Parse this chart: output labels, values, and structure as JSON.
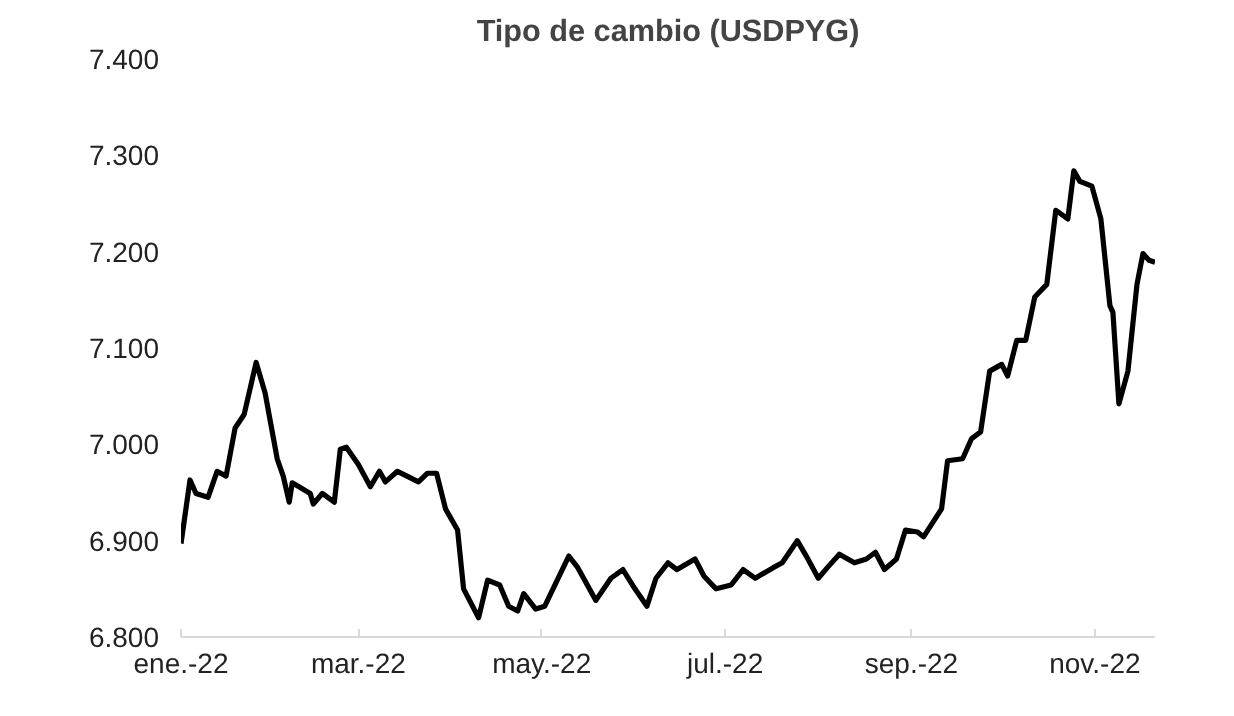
{
  "chart_data": {
    "type": "line",
    "title": "Tipo de cambio (USDPYG)",
    "x": [
      "2022-01-01",
      "2022-01-04",
      "2022-01-06",
      "2022-01-10",
      "2022-01-13",
      "2022-01-16",
      "2022-01-19",
      "2022-01-22",
      "2022-01-26",
      "2022-01-29",
      "2022-02-02",
      "2022-02-04",
      "2022-02-06",
      "2022-02-07",
      "2022-02-13",
      "2022-02-14",
      "2022-02-17",
      "2022-02-21",
      "2022-02-23",
      "2022-02-25",
      "2022-03-01",
      "2022-03-05",
      "2022-03-08",
      "2022-03-10",
      "2022-03-14",
      "2022-03-21",
      "2022-03-24",
      "2022-03-27",
      "2022-03-30",
      "2022-04-03",
      "2022-04-05",
      "2022-04-10",
      "2022-04-13",
      "2022-04-17",
      "2022-04-20",
      "2022-04-23",
      "2022-04-25",
      "2022-04-29",
      "2022-05-02",
      "2022-05-10",
      "2022-05-13",
      "2022-05-19",
      "2022-05-24",
      "2022-05-28",
      "2022-06-01",
      "2022-06-05",
      "2022-06-08",
      "2022-06-12",
      "2022-06-15",
      "2022-06-21",
      "2022-06-24",
      "2022-06-28",
      "2022-07-03",
      "2022-07-07",
      "2022-07-11",
      "2022-07-17",
      "2022-07-20",
      "2022-07-25",
      "2022-07-28",
      "2022-08-01",
      "2022-08-04",
      "2022-08-08",
      "2022-08-13",
      "2022-08-17",
      "2022-08-20",
      "2022-08-23",
      "2022-08-27",
      "2022-08-30",
      "2022-09-03",
      "2022-09-05",
      "2022-09-11",
      "2022-09-13",
      "2022-09-18",
      "2022-09-21",
      "2022-09-24",
      "2022-09-27",
      "2022-10-01",
      "2022-10-03",
      "2022-10-06",
      "2022-10-09",
      "2022-10-12",
      "2022-10-16",
      "2022-10-19",
      "2022-10-23",
      "2022-10-25",
      "2022-10-27",
      "2022-10-31",
      "2022-11-03",
      "2022-11-06",
      "2022-11-07",
      "2022-11-09",
      "2022-11-12",
      "2022-11-15",
      "2022-11-17",
      "2022-11-19",
      "2022-11-21"
    ],
    "series": [
      {
        "color": "#000000",
        "values": [
          6897,
          6963,
          6949,
          6945,
          6972,
          6967,
          7017,
          7031,
          7085,
          7053,
          6985,
          6967,
          6940,
          6960,
          6949,
          6938,
          6949,
          6940,
          6995,
          6997,
          6979,
          6956,
          6972,
          6961,
          6972,
          6961,
          6970,
          6970,
          6933,
          6911,
          6850,
          6820,
          6859,
          6854,
          6832,
          6827,
          6845,
          6829,
          6832,
          6884,
          6872,
          6838,
          6861,
          6870,
          6850,
          6832,
          6861,
          6877,
          6870,
          6881,
          6863,
          6850,
          6854,
          6870,
          6861,
          6872,
          6877,
          6900,
          6884,
          6861,
          6872,
          6886,
          6877,
          6881,
          6888,
          6870,
          6881,
          6911,
          6909,
          6904,
          6933,
          6983,
          6985,
          7006,
          7013,
          7076,
          7083,
          7071,
          7108,
          7108,
          7153,
          7166,
          7243,
          7234,
          7284,
          7273,
          7268,
          7234,
          7144,
          7137,
          7042,
          7076,
          7166,
          7198,
          7191,
          7189
        ]
      }
    ],
    "xlim": [
      "2022-01-01",
      "2022-11-21"
    ],
    "xticks": [
      {
        "value": "2022-01-01",
        "label": "ene.-22"
      },
      {
        "value": "2022-03-01",
        "label": "mar.-22"
      },
      {
        "value": "2022-05-01",
        "label": "may.-22"
      },
      {
        "value": "2022-07-01",
        "label": "jul.-22"
      },
      {
        "value": "2022-09-01",
        "label": "sep.-22"
      },
      {
        "value": "2022-11-01",
        "label": "nov.-22"
      }
    ],
    "ylim": [
      6800,
      7400
    ],
    "yticks": [
      {
        "value": 6800,
        "label": "6.800"
      },
      {
        "value": 6900,
        "label": "6.900"
      },
      {
        "value": 7000,
        "label": "7.000"
      },
      {
        "value": 7100,
        "label": "7.100"
      },
      {
        "value": 7200,
        "label": "7.200"
      },
      {
        "value": 7300,
        "label": "7.300"
      },
      {
        "value": 7400,
        "label": "7.400"
      }
    ],
    "grid": false,
    "line_style": "solid"
  }
}
